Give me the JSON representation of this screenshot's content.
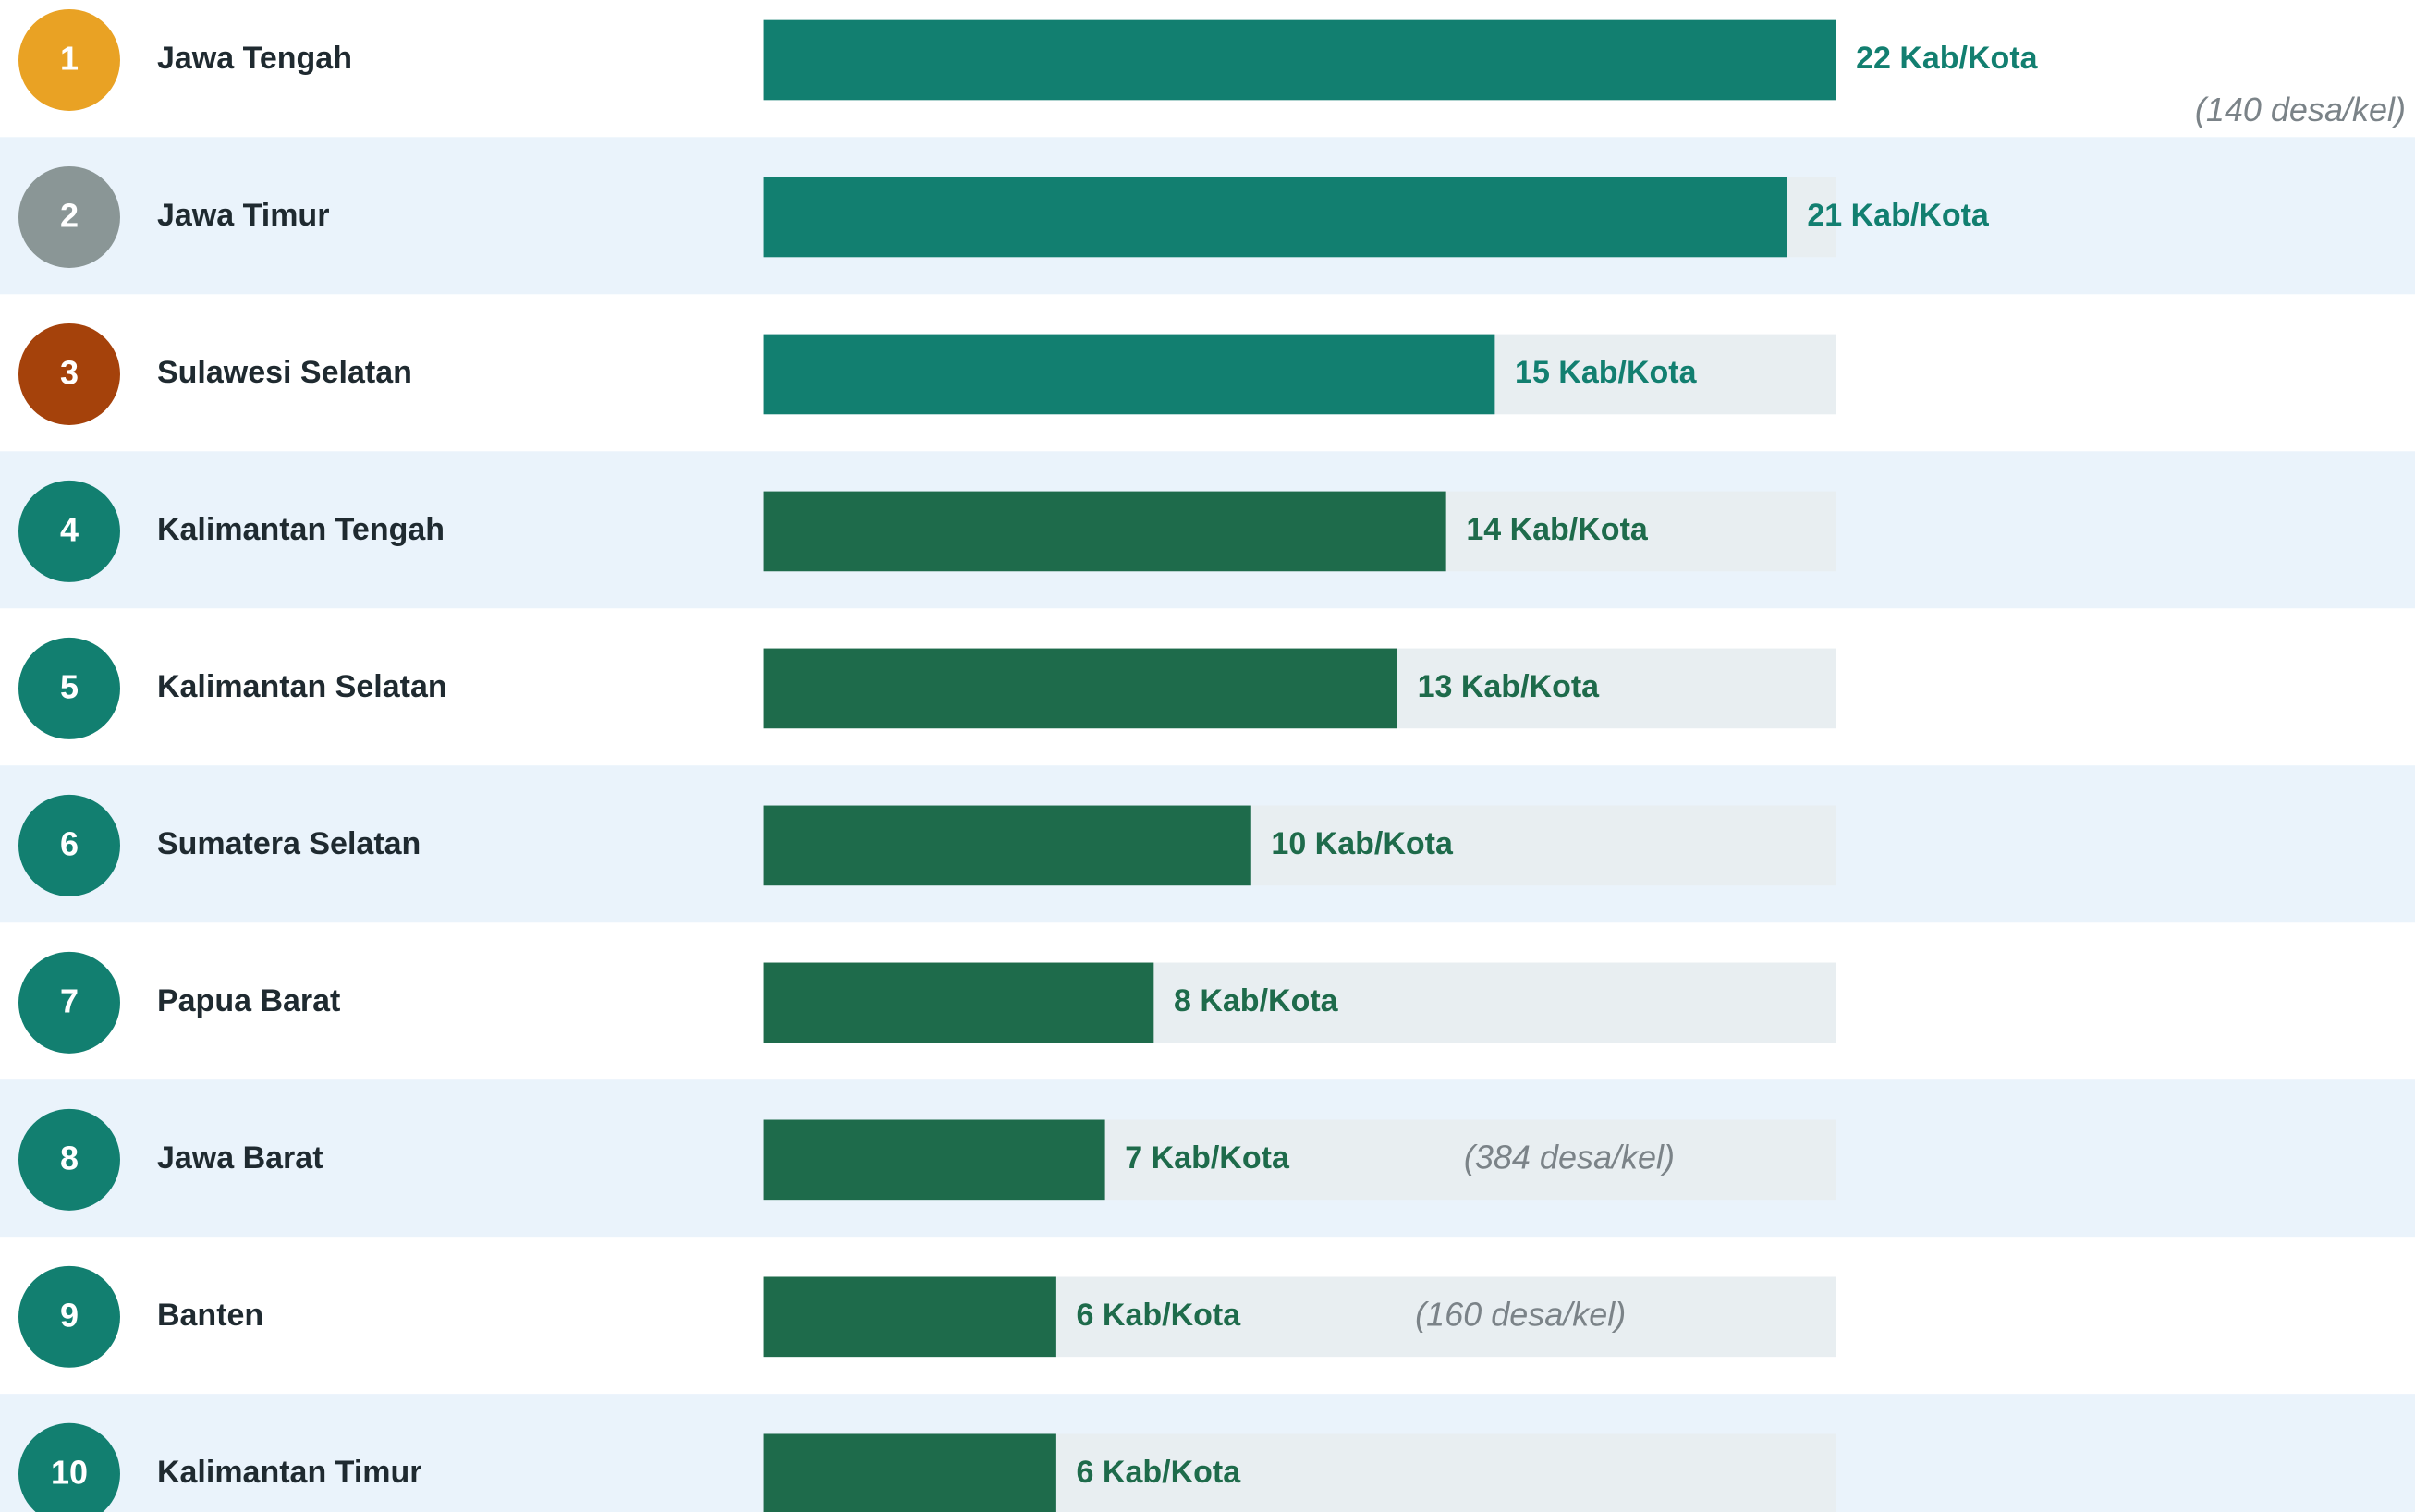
{
  "chart_data": {
    "type": "bar",
    "orientation": "horizontal",
    "ranks": [
      "1",
      "2",
      "3",
      "4",
      "5",
      "6",
      "7",
      "8",
      "9",
      "10"
    ],
    "rank_colors": [
      "#e9a224",
      "#8a9696",
      "#a5420b",
      "#127f70",
      "#127f70",
      "#127f70",
      "#127f70",
      "#127f70",
      "#127f70",
      "#127f70"
    ],
    "categories": [
      "Jawa Tengah",
      "Jawa Timur",
      "Sulawesi Selatan",
      "Kalimantan Tengah",
      "Kalimantan Selatan",
      "Sumatera Selatan",
      "Papua Barat",
      "Jawa Barat",
      "Banten",
      "Kalimantan Timur"
    ],
    "values": [
      22,
      21,
      15,
      14,
      13,
      10,
      8,
      7,
      6,
      6
    ],
    "value_labels": [
      "22 Kab/Kota",
      "21 Kab/Kota",
      "15 Kab/Kota",
      "14 Kab/Kota",
      "13 Kab/Kota",
      "10 Kab/Kota",
      "8 Kab/Kota",
      "7 Kab/Kota",
      "6 Kab/Kota",
      "6 Kab/Kota"
    ],
    "colors": [
      "#127f70",
      "#127f70",
      "#127f70",
      "#1e6b4b",
      "#1e6b4b",
      "#1e6b4b",
      "#1e6b4b",
      "#1e6b4b",
      "#1e6b4b",
      "#1e6b4b"
    ],
    "notes": [
      "(140 desa/kel)",
      null,
      null,
      null,
      null,
      null,
      null,
      "(384 desa/kel)",
      "(160 desa/kel)",
      null
    ],
    "xlim": [
      0,
      22
    ]
  }
}
